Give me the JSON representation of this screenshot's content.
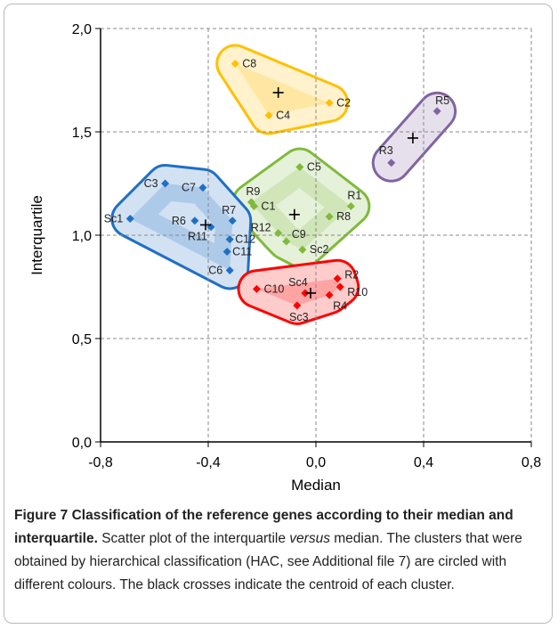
{
  "chart_data": {
    "type": "scatter",
    "xlabel": "Median",
    "ylabel": "Interquartile",
    "xlim": [
      -0.8,
      0.8
    ],
    "xticks": [
      {
        "value": -0.8,
        "label": "-0,8"
      },
      {
        "value": -0.4,
        "label": "-0,4"
      },
      {
        "value": 0,
        "label": "0,0"
      },
      {
        "value": 0.4,
        "label": "0,4"
      },
      {
        "value": 0.8,
        "label": "0,8"
      }
    ],
    "ylim": [
      0,
      2
    ],
    "yticks": [
      {
        "value": 0,
        "label": "0,0"
      },
      {
        "value": 0.5,
        "label": "0,5"
      },
      {
        "value": 1,
        "label": "1,0"
      },
      {
        "value": 1.5,
        "label": "1,5"
      },
      {
        "value": 2,
        "label": "2,0"
      }
    ],
    "grid": true,
    "series": [
      {
        "color": "#ffc000",
        "labels": [
          "C8",
          "C2",
          "C4"
        ],
        "x": [
          -0.3,
          0.05,
          -0.175
        ],
        "y": [
          1.83,
          1.64,
          1.58
        ],
        "centroid": {
          "x": -0.14,
          "y": 1.69
        }
      },
      {
        "color": "#8064a2",
        "labels": [
          "R5",
          "R3"
        ],
        "x": [
          0.45,
          0.28
        ],
        "y": [
          1.6,
          1.35
        ],
        "centroid": {
          "x": 0.36,
          "y": 1.47
        }
      },
      {
        "color": "#7fba3c",
        "labels": [
          "C5",
          "R9",
          "C1",
          "R1",
          "R8",
          "R12",
          "C9",
          "Sc2"
        ],
        "x": [
          -0.06,
          -0.24,
          -0.23,
          0.13,
          0.05,
          -0.14,
          -0.11,
          -0.05
        ],
        "y": [
          1.33,
          1.16,
          1.14,
          1.14,
          1.09,
          1.01,
          0.97,
          0.93
        ],
        "centroid": {
          "x": -0.08,
          "y": 1.1
        }
      },
      {
        "color": "#1f6fc5",
        "labels": [
          "C3",
          "C7",
          "Sc1",
          "R6",
          "R7",
          "R11",
          "C12",
          "C11",
          "C6"
        ],
        "x": [
          -0.56,
          -0.42,
          -0.69,
          -0.45,
          -0.31,
          -0.39,
          -0.32,
          -0.33,
          -0.32
        ],
        "y": [
          1.25,
          1.23,
          1.08,
          1.07,
          1.07,
          1.04,
          0.98,
          0.92,
          0.83
        ],
        "centroid": {
          "x": -0.41,
          "y": 1.05
        }
      },
      {
        "color": "#ff0000",
        "labels": [
          "R2",
          "R10",
          "R4",
          "C10",
          "Sc4",
          "Sc3"
        ],
        "x": [
          0.08,
          0.09,
          0.05,
          -0.22,
          -0.04,
          -0.07
        ],
        "y": [
          0.79,
          0.75,
          0.71,
          0.74,
          0.72,
          0.66
        ],
        "centroid": {
          "x": -0.02,
          "y": 0.72
        }
      }
    ]
  },
  "caption": {
    "title": "Figure 7 Classification of the reference genes according to their median and interquartile.",
    "text_before": " Scatter plot of the interquartile ",
    "text_italic": "versus",
    "text_after": " median. The clusters that were obtained by hierarchical classification (HAC, see Additional file 7) are circled with different colours. The black crosses indicate the centroid of each cluster."
  }
}
